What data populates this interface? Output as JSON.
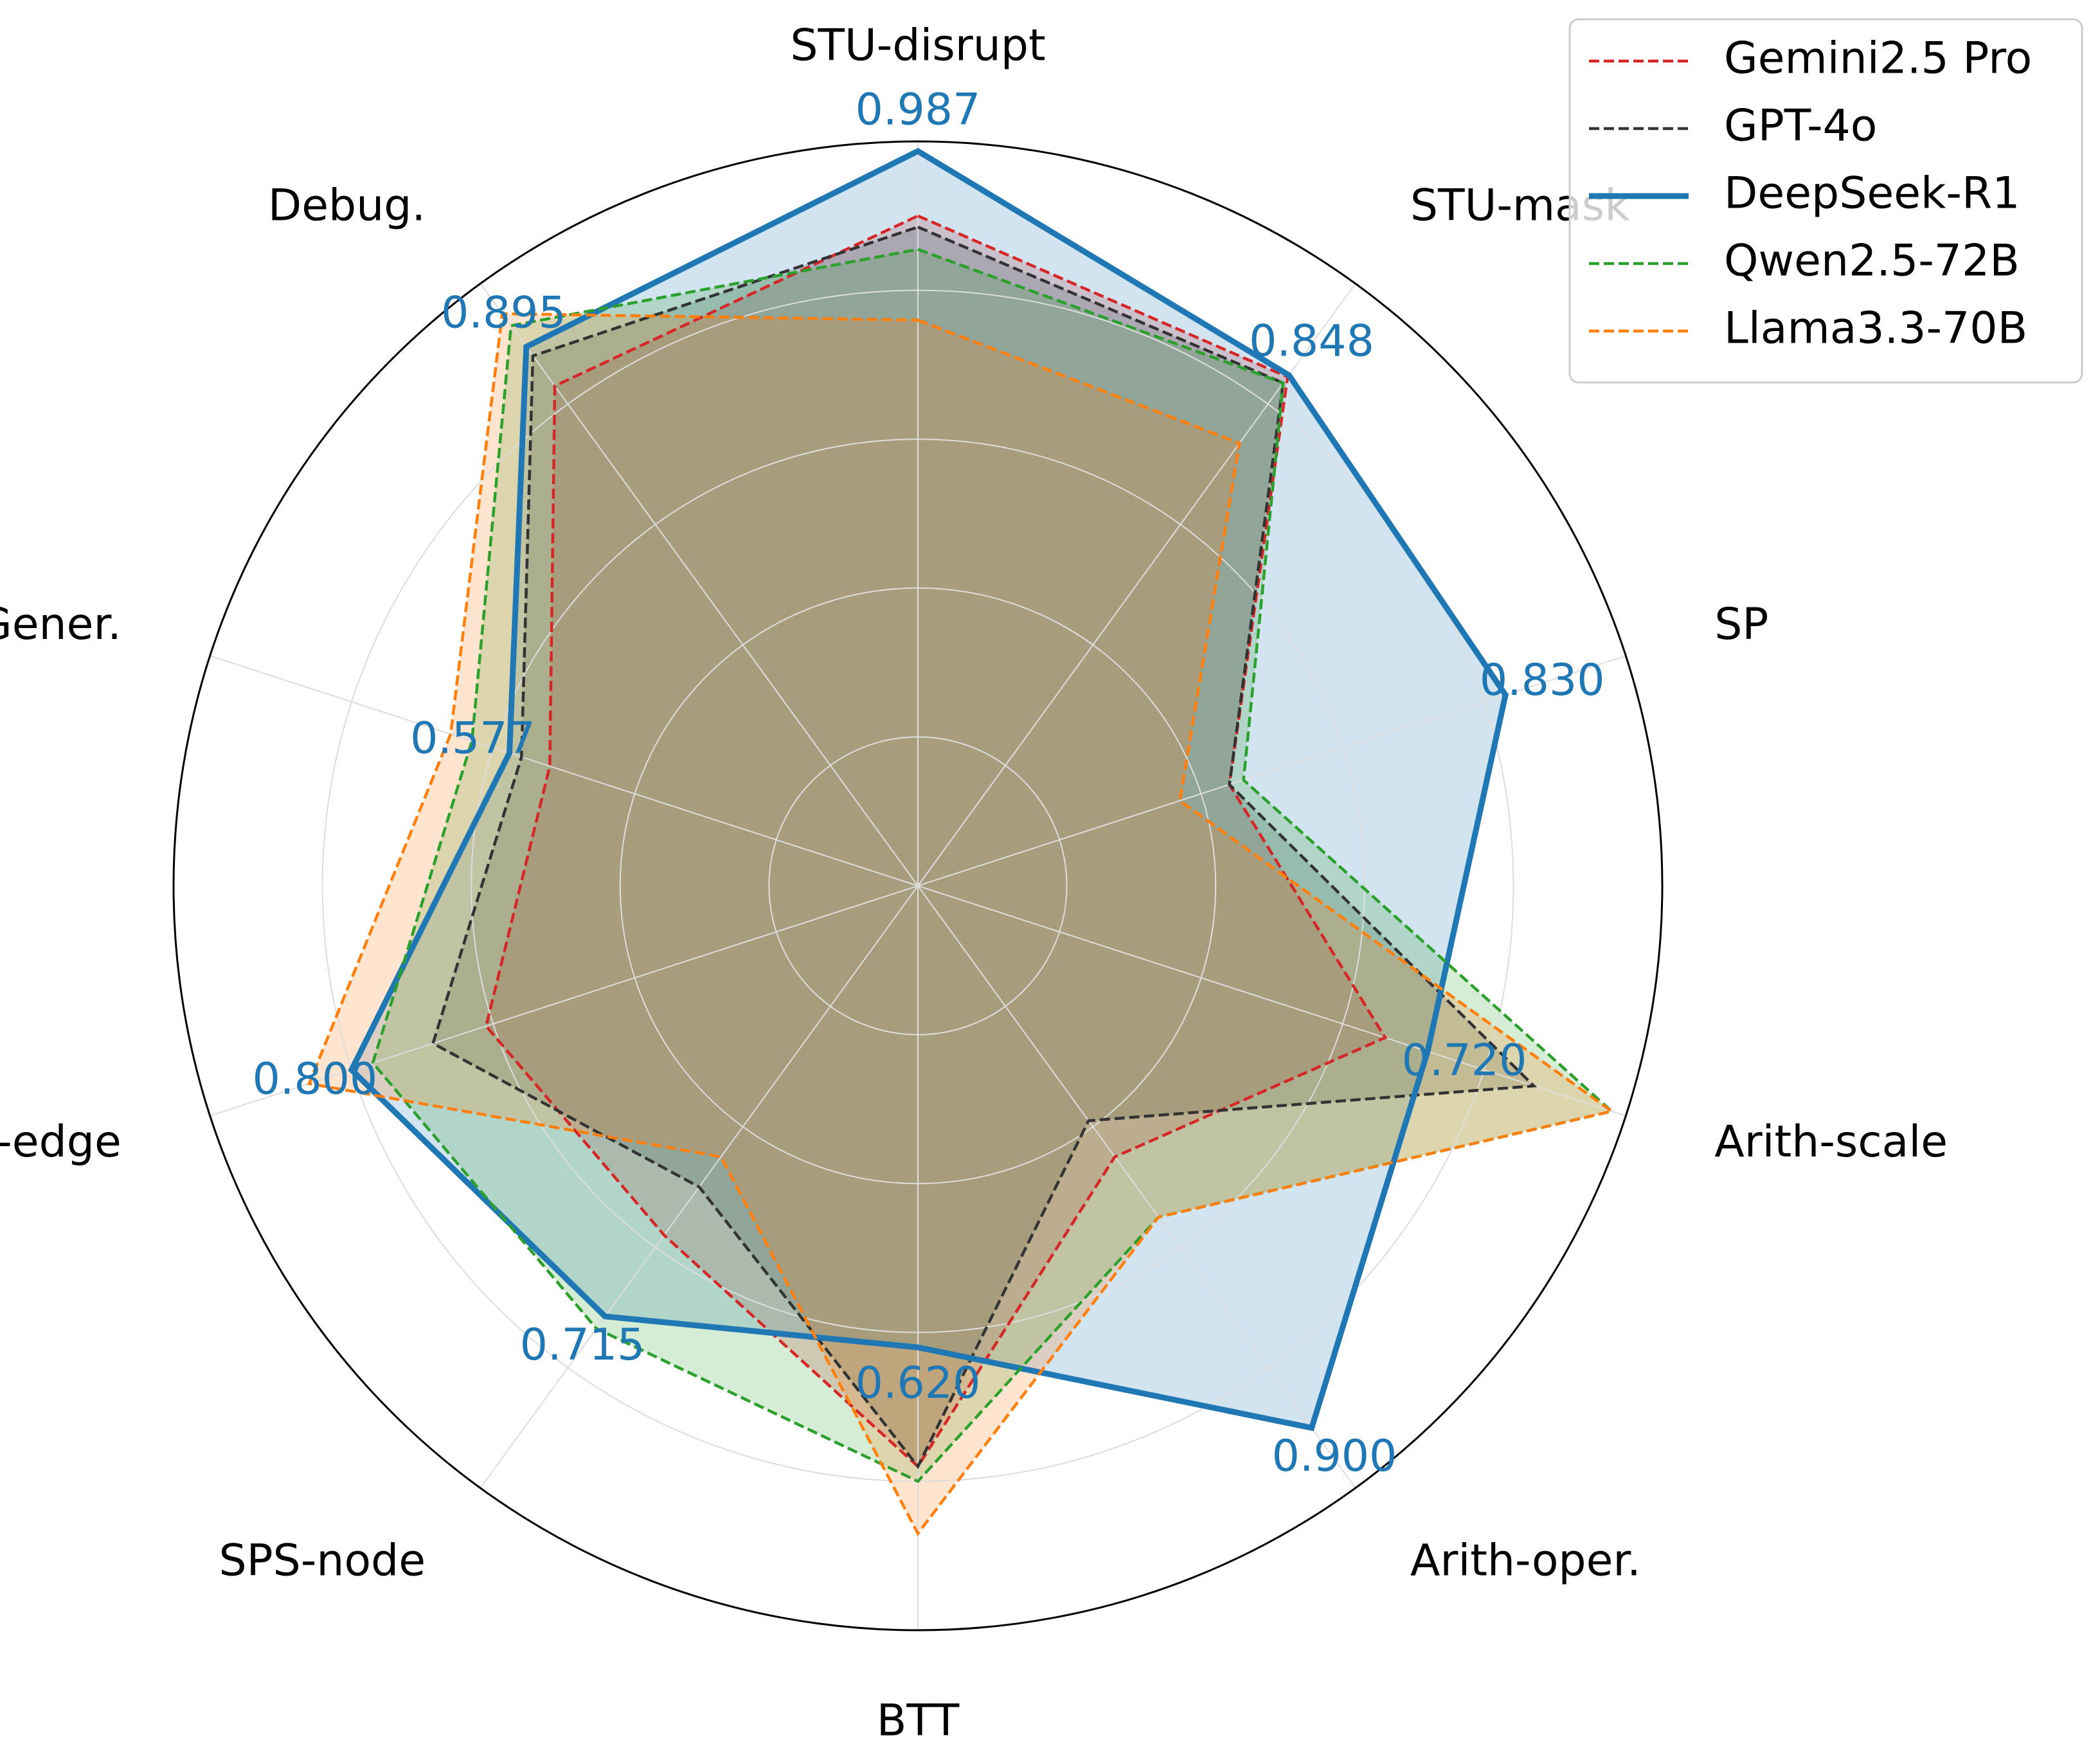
{
  "chart_data": {
    "type": "radar",
    "title": "",
    "axes": [
      "STU-disrupt",
      "STU-mask",
      "SP",
      "Arith-scale",
      "Arith-oper.",
      "BTT",
      "SPS-node",
      "SPS-edge",
      "Gener.",
      "Debug."
    ],
    "rlim": [
      0,
      1.0
    ],
    "grid_rings": [
      0.2,
      0.4,
      0.6,
      0.8
    ],
    "legend_position": "top-right",
    "highlight_series": "DeepSeek-R1",
    "highlight_labels": [
      "0.987",
      "0.848",
      "0.830",
      "0.720",
      "0.900",
      "0.620",
      "0.715",
      "0.800",
      "0.577",
      "0.895"
    ],
    "series": [
      {
        "name": "Gemini2.5 Pro",
        "color": "#d62728",
        "style": "dashed",
        "values": [
          0.9,
          0.845,
          0.44,
          0.66,
          0.45,
          0.78,
          0.58,
          0.61,
          0.52,
          0.83
        ]
      },
      {
        "name": "GPT-4o",
        "color": "#333333",
        "style": "dashed",
        "values": [
          0.885,
          0.835,
          0.44,
          0.87,
          0.39,
          0.78,
          0.5,
          0.685,
          0.56,
          0.88
        ]
      },
      {
        "name": "DeepSeek-R1",
        "color": "#1f77b4",
        "style": "solid",
        "fill": "#1f77b4",
        "values": [
          0.987,
          0.848,
          0.83,
          0.72,
          0.9,
          0.62,
          0.715,
          0.8,
          0.577,
          0.895
        ]
      },
      {
        "name": "Qwen2.5-72B",
        "color": "#2ca02c",
        "style": "dashed",
        "values": [
          0.855,
          0.835,
          0.46,
          0.98,
          0.55,
          0.8,
          0.735,
          0.77,
          0.63,
          0.93
        ]
      },
      {
        "name": "Llama3.3-70B",
        "color": "#ff7f0e",
        "style": "dashed",
        "values": [
          0.76,
          0.735,
          0.37,
          0.98,
          0.55,
          0.87,
          0.45,
          0.86,
          0.66,
          0.95
        ]
      }
    ]
  }
}
